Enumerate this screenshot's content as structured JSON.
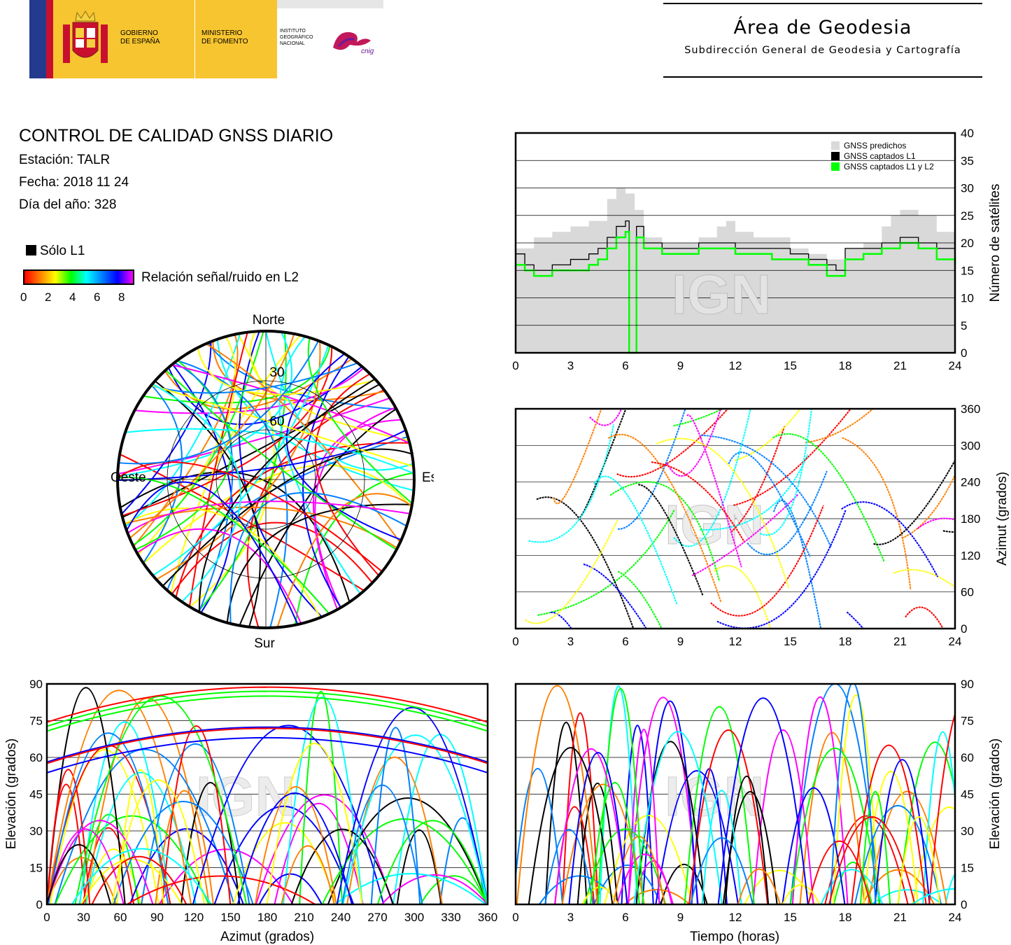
{
  "header": {
    "gobierno_lines": [
      "GOBIERNO",
      "DE ESPAÑA"
    ],
    "ministerio_lines": [
      "MINISTERIO",
      "DE FOMENTO"
    ],
    "instituto_lines": [
      "INSTITUTO",
      "GEOGRÁFICO",
      "NACIONAL"
    ],
    "cnig_mark": "cnig",
    "area_title": "Área de Geodesia",
    "area_subtitle": "Subdirección General de Geodesia y Cartografía"
  },
  "report": {
    "title": "CONTROL DE CALIDAD GNSS DIARIO",
    "station": "Estación: TALR",
    "date": "Fecha: 2018 11 24",
    "day_of_year": "Día del año: 328"
  },
  "legend": {
    "l1_only": "Sólo L1",
    "snr_label": "Relación señal/ruido en L2",
    "snr_ticks": [
      "0",
      "2",
      "4",
      "6",
      "8"
    ],
    "snr_colors": [
      "#ff0000",
      "#ff7f00",
      "#ffff00",
      "#00ff00",
      "#00ffff",
      "#0080ff",
      "#0000ff",
      "#ff00ff"
    ]
  },
  "watermark": "IGN",
  "chart_data": [
    {
      "type": "polar",
      "id": "skyplot",
      "direction_labels": {
        "north": "Norte",
        "south": "Sur",
        "east": "Este",
        "west": "Oeste"
      },
      "elevation_rings": [
        30,
        60
      ],
      "elevation_ring_labels": [
        "30",
        "60"
      ]
    },
    {
      "type": "area-step",
      "id": "satellite-count",
      "ylabel": "Número de satélites",
      "xlim": [
        0,
        24
      ],
      "ylim": [
        0,
        40
      ],
      "xticks": [
        "0",
        "3",
        "6",
        "9",
        "12",
        "15",
        "18",
        "21",
        "24"
      ],
      "yticks": [
        "0",
        "5",
        "10",
        "15",
        "20",
        "25",
        "30",
        "35",
        "40"
      ],
      "legend": [
        "GNSS predichos",
        "GNSS captados L1",
        "GNSS captados L1 y L2"
      ],
      "legend_position": "top-right",
      "grid": true,
      "series": [
        {
          "name": "GNSS predichos",
          "color": "#d9d9d9",
          "x": [
            0,
            1,
            2,
            3,
            4,
            5,
            5.5,
            6,
            6.5,
            7,
            8,
            9,
            10,
            11,
            11.5,
            12,
            13,
            14,
            15,
            16,
            17,
            18,
            19,
            20,
            20.5,
            21,
            22,
            23,
            24
          ],
          "values": [
            19,
            21,
            22,
            23,
            24,
            28,
            30,
            29,
            26,
            21,
            20,
            20,
            21,
            23,
            24,
            22,
            21,
            21,
            19,
            18,
            17,
            19,
            20,
            23,
            25,
            26,
            25,
            22,
            20
          ]
        },
        {
          "name": "GNSS captados L1",
          "color": "#000000",
          "x": [
            0,
            0.5,
            1,
            2,
            3,
            4,
            4.5,
            5,
            5.5,
            6,
            6.2,
            6.4,
            6.6,
            7,
            8,
            9,
            10,
            11,
            12,
            13,
            14,
            15,
            16,
            17,
            17.5,
            18,
            19,
            20,
            21,
            22,
            23,
            24
          ],
          "values": [
            18,
            16,
            15,
            16,
            17,
            18,
            19,
            21,
            23,
            24,
            0,
            0,
            23,
            20,
            19,
            19,
            20,
            20,
            19,
            19,
            19,
            18,
            17,
            16,
            15,
            19,
            19,
            20,
            21,
            20,
            19,
            18
          ]
        },
        {
          "name": "GNSS captados L1 y L2",
          "color": "#00ff00",
          "x": [
            0,
            0.5,
            1,
            2,
            3,
            4,
            4.5,
            5,
            5.5,
            6,
            6.2,
            6.4,
            6.6,
            7,
            8,
            9,
            10,
            11,
            12,
            13,
            14,
            15,
            16,
            17,
            17.5,
            18,
            19,
            20,
            21,
            22,
            23,
            24
          ],
          "values": [
            16,
            15,
            14,
            15,
            15,
            16,
            17,
            19,
            21,
            22,
            0,
            0,
            21,
            19,
            18,
            18,
            19,
            19,
            18,
            18,
            17,
            17,
            16,
            14,
            14,
            17,
            18,
            19,
            20,
            19,
            17,
            16
          ]
        }
      ]
    },
    {
      "type": "scatter",
      "id": "azimuth-vs-time",
      "ylabel": "Azimut (grados)",
      "xlim": [
        0,
        24
      ],
      "ylim": [
        0,
        360
      ],
      "xticks": [
        "0",
        "3",
        "6",
        "9",
        "12",
        "15",
        "18",
        "21",
        "24"
      ],
      "yticks": [
        "0",
        "60",
        "120",
        "180",
        "240",
        "300",
        "360"
      ],
      "grid": true
    },
    {
      "type": "scatter",
      "id": "elevation-vs-azimuth",
      "xlabel": "Azimut (grados)",
      "ylabel": "Elevación (grados)",
      "xlim": [
        0,
        360
      ],
      "ylim": [
        0,
        90
      ],
      "xticks": [
        "0",
        "30",
        "60",
        "90",
        "120",
        "150",
        "180",
        "210",
        "240",
        "270",
        "300",
        "330",
        "360"
      ],
      "yticks": [
        "0",
        "15",
        "30",
        "45",
        "60",
        "75",
        "90"
      ],
      "grid": true
    },
    {
      "type": "scatter",
      "id": "elevation-vs-time",
      "xlabel": "Tiempo (horas)",
      "ylabel": "Elevación (grados)",
      "xlim": [
        0,
        24
      ],
      "ylim": [
        0,
        90
      ],
      "xticks": [
        "0",
        "3",
        "6",
        "9",
        "12",
        "15",
        "18",
        "21",
        "24"
      ],
      "yticks": [
        "0",
        "15",
        "30",
        "45",
        "60",
        "75",
        "90"
      ],
      "grid": true
    }
  ]
}
